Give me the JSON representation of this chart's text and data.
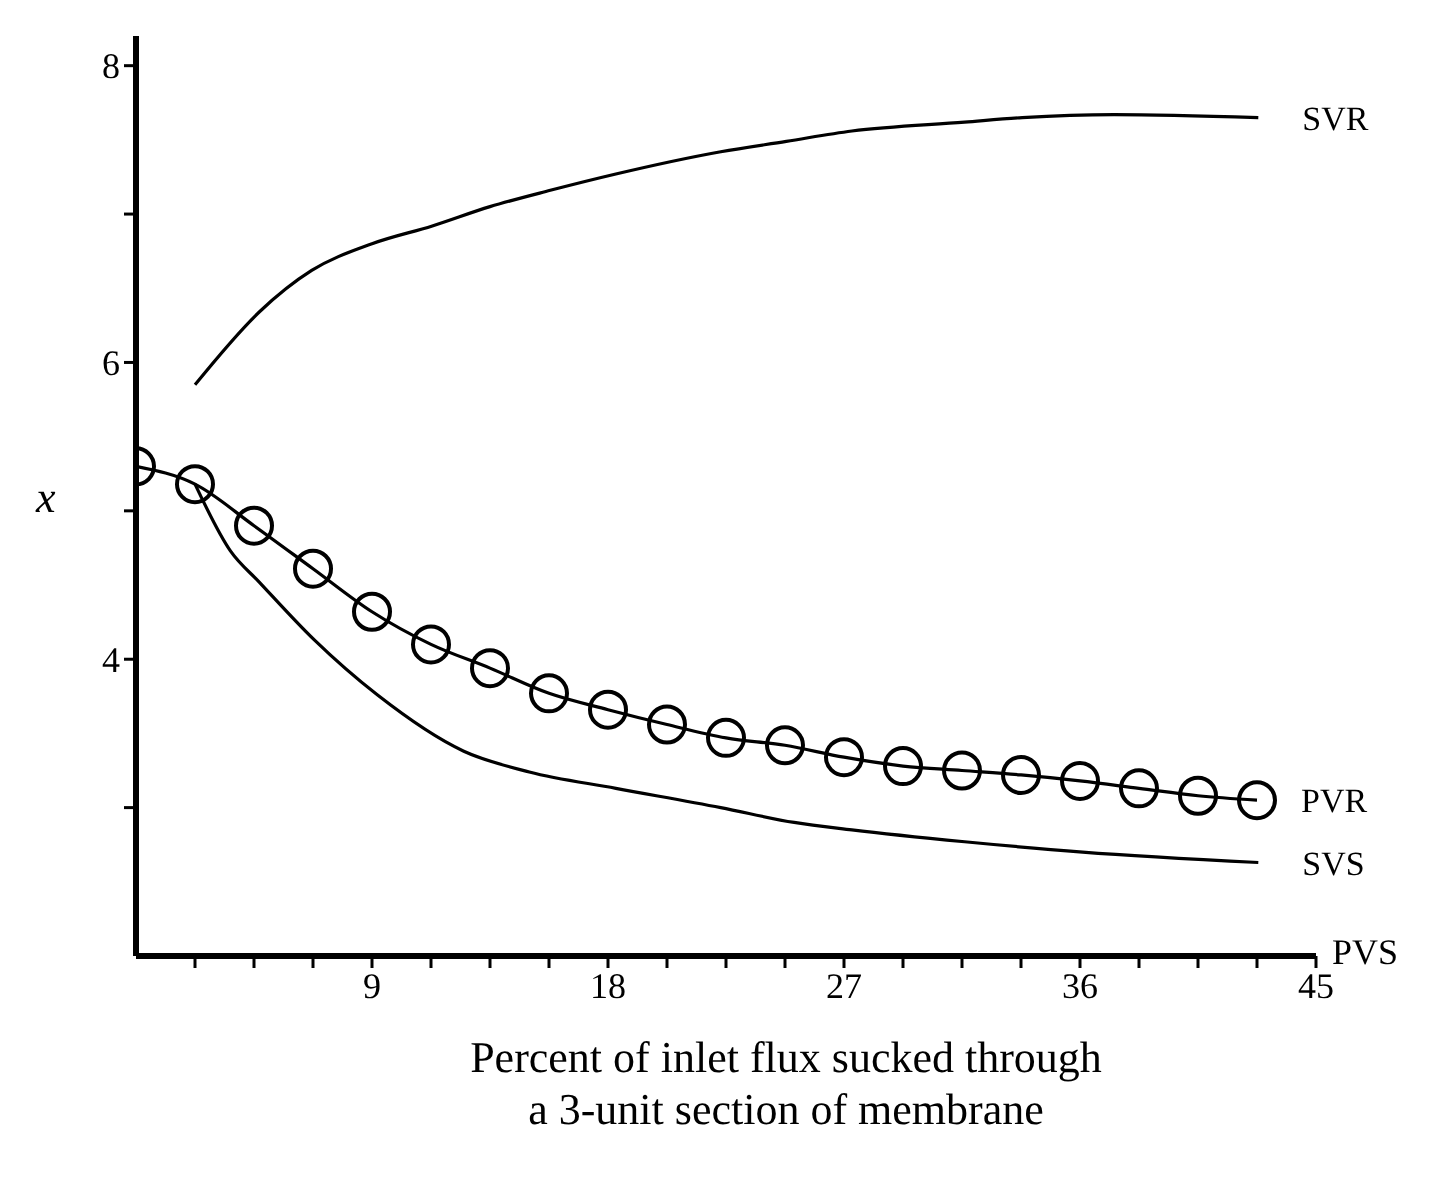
{
  "chart_data": {
    "type": "line",
    "ylabel": "x",
    "xlabel": "Percent of inlet flux sucked through\na 3-unit section of membrane",
    "annotations": [
      "PVS"
    ],
    "xlim": [
      0,
      45
    ],
    "xticks": [
      {
        "value": 2.25,
        "label": null
      },
      {
        "value": 4.5,
        "label": null
      },
      {
        "value": 6.75,
        "label": null
      },
      9,
      {
        "value": 11.25,
        "label": null
      },
      {
        "value": 13.5,
        "label": null
      },
      {
        "value": 15.75,
        "label": null
      },
      18,
      {
        "value": 20.25,
        "label": null
      },
      {
        "value": 22.5,
        "label": null
      },
      {
        "value": 24.75,
        "label": null
      },
      27,
      {
        "value": 29.25,
        "label": null
      },
      {
        "value": 31.5,
        "label": null
      },
      {
        "value": 33.75,
        "label": null
      },
      36,
      {
        "value": 38.25,
        "label": null
      },
      {
        "value": 40.5,
        "label": null
      },
      {
        "value": 42.75,
        "label": null
      },
      45
    ],
    "ylim": [
      2,
      8.2
    ],
    "yticks": [
      {
        "value": 3,
        "label": null
      },
      4,
      {
        "value": 5,
        "label": null
      },
      6,
      {
        "value": 7,
        "label": null
      },
      8
    ],
    "grid": false,
    "legend": false,
    "marker": "none",
    "line_style": "solid",
    "series": [
      {
        "name": "SVR",
        "color": "#000000",
        "x": [
          2.25,
          4.7,
          6.7,
          9,
          11.3,
          13.5,
          15.8,
          18.3,
          22.3,
          24.8,
          27.3,
          31.6,
          33.8,
          37.3,
          42.8
        ],
        "values": [
          5.85,
          6.34,
          6.62,
          6.8,
          6.92,
          7.05,
          7.16,
          7.27,
          7.42,
          7.49,
          7.56,
          7.62,
          7.65,
          7.67,
          7.65
        ]
      },
      {
        "name": "PVR",
        "color": "#000000",
        "marker": "circle",
        "x": [
          0,
          2.25,
          4.5,
          6.75,
          9,
          11.25,
          13.5,
          15.75,
          18,
          20.25,
          22.5,
          24.75,
          27,
          29.25,
          31.5,
          33.75,
          36,
          38.25,
          40.5,
          42.75
        ],
        "values": [
          5.3,
          5.18,
          4.9,
          4.61,
          4.32,
          4.1,
          3.94,
          3.77,
          3.66,
          3.56,
          3.47,
          3.42,
          3.34,
          3.28,
          3.25,
          3.22,
          3.18,
          3.13,
          3.08,
          3.05
        ]
      },
      {
        "name": "SVS",
        "color": "#000000",
        "x": [
          2.25,
          3.6,
          4.7,
          6.8,
          9.2,
          12.5,
          15,
          18.3,
          22.3,
          25.1,
          27.3,
          31.6,
          36.1,
          42.8
        ],
        "values": [
          5.18,
          4.73,
          4.52,
          4.13,
          3.76,
          3.38,
          3.24,
          3.13,
          3,
          2.9,
          2.85,
          2.77,
          2.7,
          2.63
        ]
      }
    ]
  }
}
